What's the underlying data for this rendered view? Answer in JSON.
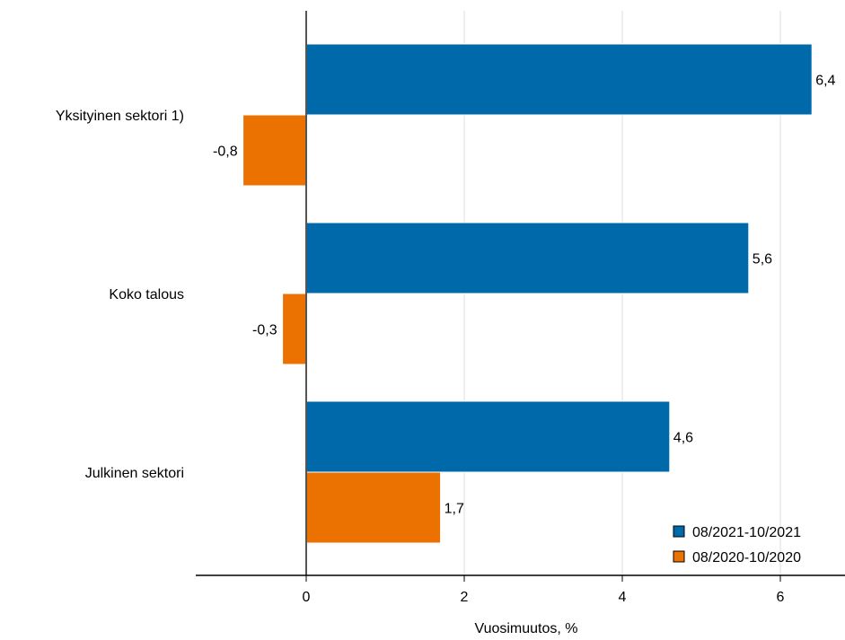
{
  "chart_data": {
    "type": "bar",
    "orientation": "horizontal",
    "categories": [
      "Yksityinen sektori 1)",
      "Koko talous",
      "Julkinen sektori"
    ],
    "series": [
      {
        "name": "08/2021-10/2021",
        "color": "#0069aa",
        "values": [
          6.4,
          5.6,
          4.6
        ],
        "labels": [
          "6,4",
          "5,6",
          "4,6"
        ]
      },
      {
        "name": "08/2020-10/2020",
        "color": "#eb7200",
        "values": [
          -0.8,
          -0.3,
          1.7
        ],
        "labels": [
          "-0,8",
          "-0,3",
          "1,7"
        ]
      }
    ],
    "xlabel": "Vuosimuutos, %",
    "xlim": [
      -1.4,
      6.8
    ],
    "xticks": [
      0,
      2,
      4,
      6
    ],
    "xtick_labels": [
      "0",
      "2",
      "4",
      "6"
    ],
    "grid": "vertical",
    "legend": "bottom-right"
  }
}
